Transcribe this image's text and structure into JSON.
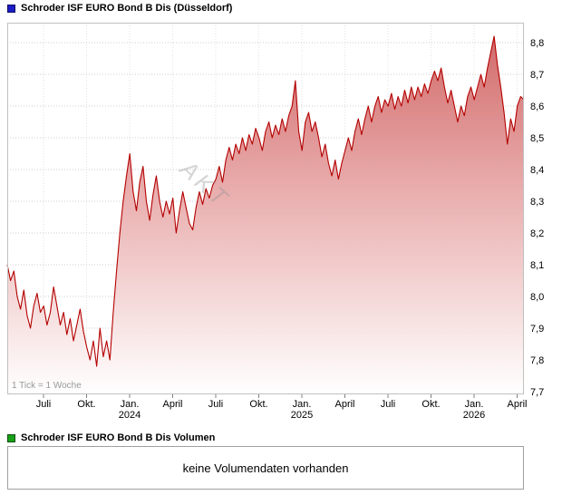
{
  "price_section": {
    "legend_label": "Schroder ISF EURO Bond B Dis (Düsseldorf)",
    "legend_color": "#1c1cc8",
    "tick_note": "1 Tick = 1 Woche",
    "watermark": "AKT"
  },
  "volume_section": {
    "legend_label": "Schroder ISF EURO Bond B Dis Volumen",
    "legend_color": "#18a018",
    "empty_message": "keine Volumendaten vorhanden"
  },
  "chart_data": {
    "type": "area",
    "title": "Schroder ISF EURO Bond B Dis (Düsseldorf)",
    "x_unit": "1 Tick = 1 Woche",
    "grid": true,
    "legend_position": "top-left-outside",
    "ylim": [
      7.7,
      8.8
    ],
    "line_color": "#b40000",
    "fill_gradient": [
      {
        "offset": "0%",
        "color": "#d06565"
      },
      {
        "offset": "45%",
        "color": "#e9adad"
      },
      {
        "offset": "100%",
        "color": "#ffffff"
      }
    ],
    "y_ticks": [
      {
        "value": 8.8,
        "label": "8,8"
      },
      {
        "value": 8.7,
        "label": "8,7"
      },
      {
        "value": 8.6,
        "label": "8,6"
      },
      {
        "value": 8.5,
        "label": "8,5"
      },
      {
        "value": 8.4,
        "label": "8,4"
      },
      {
        "value": 8.3,
        "label": "8,3"
      },
      {
        "value": 8.2,
        "label": "8,2"
      },
      {
        "value": 8.1,
        "label": "8,1"
      },
      {
        "value": 8.0,
        "label": "8,0"
      },
      {
        "value": 7.9,
        "label": "7,9"
      },
      {
        "value": 7.8,
        "label": "7,8"
      },
      {
        "value": 7.7,
        "label": "7,7"
      }
    ],
    "x_ticks": [
      {
        "label": "Juli",
        "year": ""
      },
      {
        "label": "Okt.",
        "year": ""
      },
      {
        "label": "Jan.",
        "year": "2024"
      },
      {
        "label": "April",
        "year": ""
      },
      {
        "label": "Juli",
        "year": ""
      },
      {
        "label": "Okt.",
        "year": ""
      },
      {
        "label": "Jan.",
        "year": "2025"
      },
      {
        "label": "April",
        "year": ""
      },
      {
        "label": "Juli",
        "year": ""
      },
      {
        "label": "Okt.",
        "year": ""
      },
      {
        "label": "Jan.",
        "year": "2026"
      },
      {
        "label": "April",
        "year": ""
      }
    ],
    "series": [
      {
        "name": "Schroder ISF EURO Bond B Dis",
        "values": [
          8.1,
          8.05,
          8.08,
          8.0,
          7.96,
          8.02,
          7.94,
          7.9,
          7.97,
          8.01,
          7.95,
          7.97,
          7.91,
          7.95,
          8.03,
          7.97,
          7.91,
          7.95,
          7.88,
          7.93,
          7.86,
          7.91,
          7.96,
          7.89,
          7.84,
          7.8,
          7.86,
          7.78,
          7.9,
          7.81,
          7.86,
          7.8,
          7.95,
          8.08,
          8.2,
          8.3,
          8.38,
          8.45,
          8.33,
          8.27,
          8.36,
          8.41,
          8.3,
          8.24,
          8.32,
          8.38,
          8.3,
          8.25,
          8.3,
          8.26,
          8.31,
          8.2,
          8.27,
          8.33,
          8.28,
          8.23,
          8.21,
          8.28,
          8.33,
          8.29,
          8.34,
          8.31,
          8.35,
          8.37,
          8.41,
          8.36,
          8.43,
          8.47,
          8.43,
          8.48,
          8.45,
          8.5,
          8.46,
          8.51,
          8.48,
          8.53,
          8.5,
          8.46,
          8.52,
          8.55,
          8.5,
          8.54,
          8.51,
          8.56,
          8.52,
          8.57,
          8.6,
          8.68,
          8.52,
          8.46,
          8.55,
          8.58,
          8.52,
          8.55,
          8.5,
          8.44,
          8.48,
          8.42,
          8.38,
          8.43,
          8.37,
          8.42,
          8.46,
          8.5,
          8.46,
          8.52,
          8.56,
          8.51,
          8.56,
          8.6,
          8.55,
          8.6,
          8.63,
          8.58,
          8.62,
          8.6,
          8.64,
          8.59,
          8.63,
          8.6,
          8.65,
          8.61,
          8.66,
          8.62,
          8.66,
          8.63,
          8.67,
          8.64,
          8.68,
          8.71,
          8.68,
          8.72,
          8.66,
          8.61,
          8.65,
          8.6,
          8.55,
          8.6,
          8.57,
          8.63,
          8.66,
          8.62,
          8.66,
          8.7,
          8.66,
          8.72,
          8.77,
          8.82,
          8.73,
          8.66,
          8.58,
          8.48,
          8.56,
          8.52,
          8.6,
          8.63,
          8.62
        ]
      }
    ]
  }
}
